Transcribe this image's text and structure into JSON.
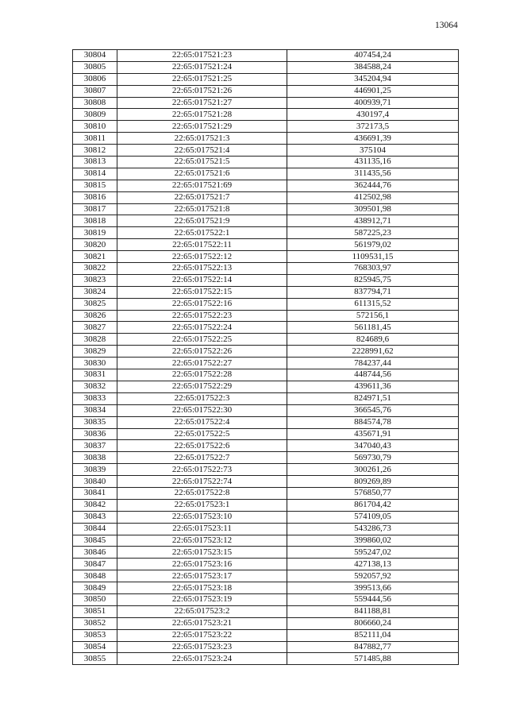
{
  "page_number": "13064",
  "table": {
    "rows": [
      [
        "30804",
        "22:65:017521:23",
        "407454,24"
      ],
      [
        "30805",
        "22:65:017521:24",
        "384588,24"
      ],
      [
        "30806",
        "22:65:017521:25",
        "345204,94"
      ],
      [
        "30807",
        "22:65:017521:26",
        "446901,25"
      ],
      [
        "30808",
        "22:65:017521:27",
        "400939,71"
      ],
      [
        "30809",
        "22:65:017521:28",
        "430197,4"
      ],
      [
        "30810",
        "22:65:017521:29",
        "372173,5"
      ],
      [
        "30811",
        "22:65:017521:3",
        "436691,39"
      ],
      [
        "30812",
        "22:65:017521:4",
        "375104"
      ],
      [
        "30813",
        "22:65:017521:5",
        "431135,16"
      ],
      [
        "30814",
        "22:65:017521:6",
        "311435,56"
      ],
      [
        "30815",
        "22:65:017521:69",
        "362444,76"
      ],
      [
        "30816",
        "22:65:017521:7",
        "412502,98"
      ],
      [
        "30817",
        "22:65:017521:8",
        "309501,98"
      ],
      [
        "30818",
        "22:65:017521:9",
        "438912,71"
      ],
      [
        "30819",
        "22:65:017522:1",
        "587225,23"
      ],
      [
        "30820",
        "22:65:017522:11",
        "561979,02"
      ],
      [
        "30821",
        "22:65:017522:12",
        "1109531,15"
      ],
      [
        "30822",
        "22:65:017522:13",
        "768303,97"
      ],
      [
        "30823",
        "22:65:017522:14",
        "825945,75"
      ],
      [
        "30824",
        "22:65:017522:15",
        "837794,71"
      ],
      [
        "30825",
        "22:65:017522:16",
        "611315,52"
      ],
      [
        "30826",
        "22:65:017522:23",
        "572156,1"
      ],
      [
        "30827",
        "22:65:017522:24",
        "561181,45"
      ],
      [
        "30828",
        "22:65:017522:25",
        "824689,6"
      ],
      [
        "30829",
        "22:65:017522:26",
        "2228991,62"
      ],
      [
        "30830",
        "22:65:017522:27",
        "784237,44"
      ],
      [
        "30831",
        "22:65:017522:28",
        "448744,56"
      ],
      [
        "30832",
        "22:65:017522:29",
        "439611,36"
      ],
      [
        "30833",
        "22:65:017522:3",
        "824971,51"
      ],
      [
        "30834",
        "22:65:017522:30",
        "366545,76"
      ],
      [
        "30835",
        "22:65:017522:4",
        "884574,78"
      ],
      [
        "30836",
        "22:65:017522:5",
        "435671,91"
      ],
      [
        "30837",
        "22:65:017522:6",
        "347040,43"
      ],
      [
        "30838",
        "22:65:017522:7",
        "569730,79"
      ],
      [
        "30839",
        "22:65:017522:73",
        "300261,26"
      ],
      [
        "30840",
        "22:65:017522:74",
        "809269,89"
      ],
      [
        "30841",
        "22:65:017522:8",
        "576850,77"
      ],
      [
        "30842",
        "22:65:017523:1",
        "861704,42"
      ],
      [
        "30843",
        "22:65:017523:10",
        "574109,05"
      ],
      [
        "30844",
        "22:65:017523:11",
        "543286,73"
      ],
      [
        "30845",
        "22:65:017523:12",
        "399860,02"
      ],
      [
        "30846",
        "22:65:017523:15",
        "595247,02"
      ],
      [
        "30847",
        "22:65:017523:16",
        "427138,13"
      ],
      [
        "30848",
        "22:65:017523:17",
        "592057,92"
      ],
      [
        "30849",
        "22:65:017523:18",
        "399513,66"
      ],
      [
        "30850",
        "22:65:017523:19",
        "559444,56"
      ],
      [
        "30851",
        "22:65:017523:2",
        "841188,81"
      ],
      [
        "30852",
        "22:65:017523:21",
        "806660,24"
      ],
      [
        "30853",
        "22:65:017523:22",
        "852111,04"
      ],
      [
        "30854",
        "22:65:017523:23",
        "847882,77"
      ],
      [
        "30855",
        "22:65:017523:24",
        "571485,88"
      ]
    ]
  }
}
